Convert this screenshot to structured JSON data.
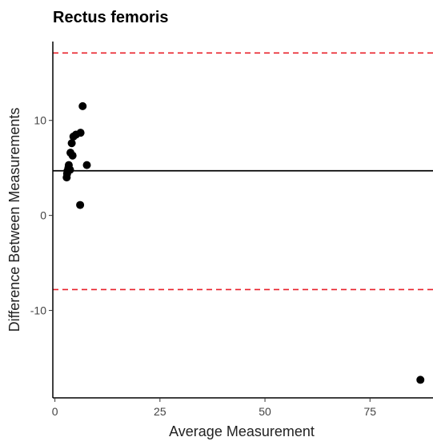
{
  "chart_data": {
    "type": "scatter",
    "title": "Rectus femoris",
    "xlabel": "Average Measurement",
    "ylabel": "Difference Between Measurements",
    "xlim": [
      -0.5,
      90
    ],
    "ylim": [
      -19.2,
      18.3
    ],
    "x_ticks": [
      0,
      25,
      50,
      75
    ],
    "y_ticks": [
      -10,
      0,
      10
    ],
    "grid": false,
    "points": [
      {
        "x": 2.8,
        "y": 4.0
      },
      {
        "x": 2.9,
        "y": 4.4
      },
      {
        "x": 3.0,
        "y": 4.7
      },
      {
        "x": 3.2,
        "y": 5.0
      },
      {
        "x": 3.6,
        "y": 4.8
      },
      {
        "x": 3.3,
        "y": 5.3
      },
      {
        "x": 3.7,
        "y": 6.6
      },
      {
        "x": 4.2,
        "y": 6.3
      },
      {
        "x": 4.0,
        "y": 7.6
      },
      {
        "x": 4.4,
        "y": 8.3
      },
      {
        "x": 5.0,
        "y": 8.5
      },
      {
        "x": 6.1,
        "y": 8.7
      },
      {
        "x": 6.6,
        "y": 11.5
      },
      {
        "x": 7.6,
        "y": 5.3
      },
      {
        "x": 6.0,
        "y": 1.1
      },
      {
        "x": 87.0,
        "y": -17.3
      }
    ],
    "reference_lines": [
      {
        "y": 4.7,
        "style": "solid",
        "color": "#000000"
      },
      {
        "y": 17.1,
        "style": "dashed",
        "color": "#e8202a"
      },
      {
        "y": -7.8,
        "style": "dashed",
        "color": "#e8202a"
      }
    ]
  }
}
